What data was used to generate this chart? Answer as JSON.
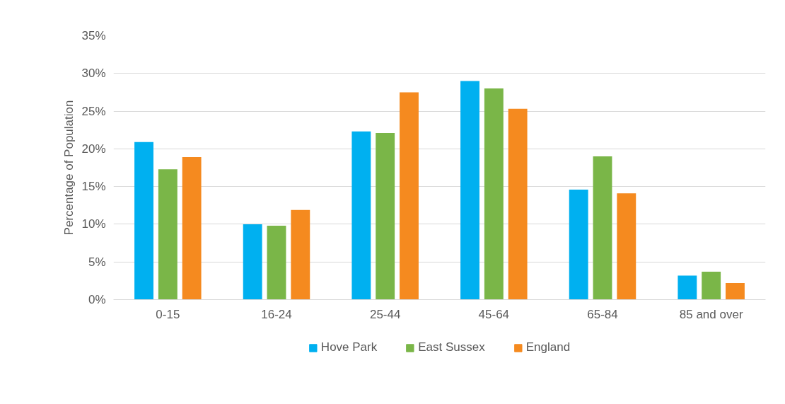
{
  "chart_data": {
    "type": "bar",
    "ylabel": "Percentage of Population",
    "categories": [
      "0-15",
      "16-24",
      "25-44",
      "45-64",
      "65-84",
      "85 and over"
    ],
    "series": [
      {
        "name": "Hove Park",
        "color": "#00b0f0",
        "values": [
          20.9,
          10.0,
          22.3,
          29.0,
          14.6,
          3.2
        ]
      },
      {
        "name": "East Sussex",
        "color": "#7ab648",
        "values": [
          17.3,
          9.8,
          22.1,
          28.0,
          19.0,
          3.7
        ]
      },
      {
        "name": "England",
        "color": "#f58a1f",
        "values": [
          18.9,
          11.9,
          27.5,
          25.3,
          14.1,
          2.2
        ]
      }
    ],
    "ylim": [
      0,
      35
    ],
    "yticks": [
      {
        "value": 0,
        "label": "0%"
      },
      {
        "value": 5,
        "label": "5%"
      },
      {
        "value": 10,
        "label": "10%"
      },
      {
        "value": 15,
        "label": "15%"
      },
      {
        "value": 20,
        "label": "20%"
      },
      {
        "value": 25,
        "label": "25%"
      },
      {
        "value": 30,
        "label": "30%"
      },
      {
        "value": 35,
        "label": "35%"
      }
    ],
    "grid": "y",
    "legend": "bottom"
  }
}
